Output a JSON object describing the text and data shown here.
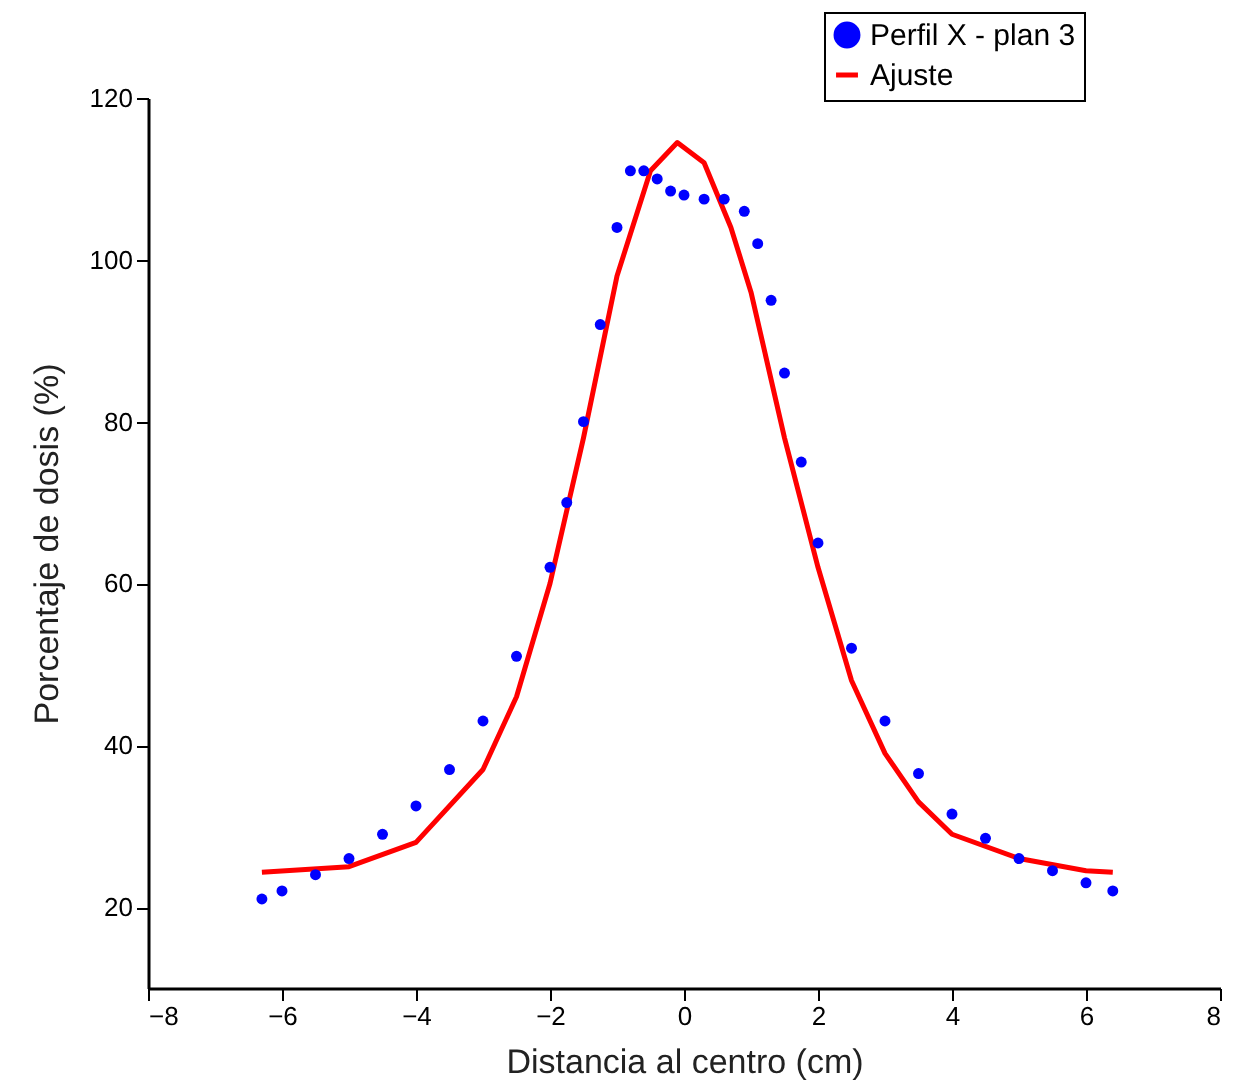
{
  "chart_data": {
    "type": "scatter",
    "xlabel": "Distancia al centro (cm)",
    "ylabel": "Porcentaje de dosis (%)",
    "xlim": [
      -8,
      8
    ],
    "xticks": [
      -8,
      -6,
      -4,
      -2,
      0,
      2,
      4,
      6,
      8
    ],
    "ylim": [
      10,
      120
    ],
    "yticks": [
      20,
      40,
      60,
      80,
      100,
      120
    ],
    "grid": false,
    "legend": "top right",
    "series": [
      {
        "name": "Perfil X - plan 3",
        "type": "scatter",
        "marker": "circle",
        "color": "#0000ff",
        "x": [
          -6.3,
          -6,
          -5.5,
          -5,
          -4.5,
          -4,
          -3.5,
          -3,
          -2.5,
          -2,
          -1.75,
          -1.5,
          -1.25,
          -1,
          -0.8,
          -0.6,
          -0.4,
          -0.2,
          0,
          0.3,
          0.6,
          0.9,
          1.1,
          1.3,
          1.5,
          1.75,
          2,
          2.5,
          3,
          3.5,
          4,
          4.5,
          5,
          5.5,
          6,
          6.4
        ],
        "values": [
          21,
          22,
          24,
          26,
          29,
          32.5,
          37,
          43,
          51,
          62,
          70,
          80,
          92,
          104,
          111,
          111,
          110,
          108.5,
          108,
          107.5,
          107.5,
          106,
          102,
          95,
          86,
          75,
          65,
          52,
          43,
          36.5,
          31.5,
          28.5,
          26,
          24.5,
          23,
          22
        ]
      },
      {
        "name": "Ajuste",
        "type": "line",
        "marker": "none",
        "line_style": "solid",
        "color": "#ff0000",
        "x": [
          -6.3,
          -5,
          -4,
          -3,
          -2.5,
          -2,
          -1.5,
          -1,
          -0.5,
          -0.1,
          0.3,
          0.7,
          1,
          1.5,
          2,
          2.5,
          3,
          3.5,
          4,
          5,
          6,
          6.4
        ],
        "values": [
          24.3,
          25,
          28,
          37,
          46,
          60,
          78,
          98,
          111,
          114.5,
          112,
          104,
          96,
          78,
          62,
          48,
          39,
          33,
          29,
          26,
          24.5,
          24.3
        ]
      }
    ]
  }
}
